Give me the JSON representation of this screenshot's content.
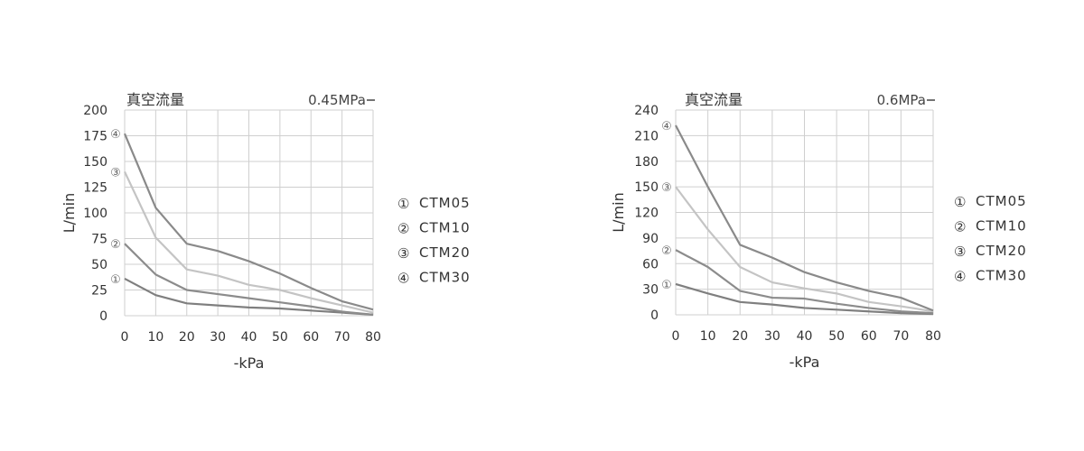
{
  "chart_data": [
    {
      "type": "line",
      "title": "真空流量",
      "pressure_label": "0.45MPa",
      "xlabel": "-kPa",
      "ylabel": "L/min",
      "x": [
        0,
        10,
        20,
        30,
        40,
        50,
        60,
        70,
        80
      ],
      "xlim": [
        0,
        80
      ],
      "ylim": [
        0,
        200
      ],
      "yticks": [
        0,
        25,
        50,
        75,
        100,
        125,
        150,
        175,
        200
      ],
      "grid": true,
      "legend": [
        {
          "marker": "①",
          "name": "CTM05"
        },
        {
          "marker": "②",
          "name": "CTM10"
        },
        {
          "marker": "③",
          "name": "CTM20"
        },
        {
          "marker": "④",
          "name": "CTM30"
        }
      ],
      "series": [
        {
          "marker": "①",
          "color": "#7f7f7f",
          "values": [
            36,
            20,
            12,
            10,
            8,
            7,
            5,
            3,
            1
          ]
        },
        {
          "marker": "②",
          "color": "#8c8c8c",
          "values": [
            70,
            40,
            25,
            21,
            17,
            13,
            9,
            4,
            1
          ]
        },
        {
          "marker": "③",
          "color": "#c4c4c4",
          "values": [
            140,
            76,
            45,
            39,
            30,
            25,
            17,
            10,
            3
          ]
        },
        {
          "marker": "④",
          "color": "#8a8a8a",
          "values": [
            177,
            105,
            70,
            63,
            53,
            41,
            27,
            14,
            6
          ]
        }
      ]
    },
    {
      "type": "line",
      "title": "真空流量",
      "pressure_label": "0.6MPa",
      "xlabel": "-kPa",
      "ylabel": "L/min",
      "x": [
        0,
        10,
        20,
        30,
        40,
        50,
        60,
        70,
        80
      ],
      "xlim": [
        0,
        80
      ],
      "ylim": [
        0,
        240
      ],
      "yticks": [
        0,
        30,
        60,
        90,
        120,
        150,
        180,
        210,
        240
      ],
      "grid": true,
      "legend": [
        {
          "marker": "①",
          "name": "CTM05"
        },
        {
          "marker": "②",
          "name": "CTM10"
        },
        {
          "marker": "③",
          "name": "CTM20"
        },
        {
          "marker": "④",
          "name": "CTM30"
        }
      ],
      "series": [
        {
          "marker": "①",
          "color": "#7f7f7f",
          "values": [
            36,
            25,
            15,
            12,
            8,
            6,
            4,
            2,
            1
          ]
        },
        {
          "marker": "②",
          "color": "#8c8c8c",
          "values": [
            76,
            56,
            28,
            20,
            19,
            13,
            8,
            4,
            2
          ]
        },
        {
          "marker": "③",
          "color": "#c4c4c4",
          "values": [
            150,
            100,
            56,
            38,
            31,
            25,
            15,
            10,
            4
          ]
        },
        {
          "marker": "④",
          "color": "#8a8a8a",
          "values": [
            222,
            150,
            82,
            67,
            50,
            38,
            28,
            20,
            5
          ]
        }
      ]
    }
  ]
}
